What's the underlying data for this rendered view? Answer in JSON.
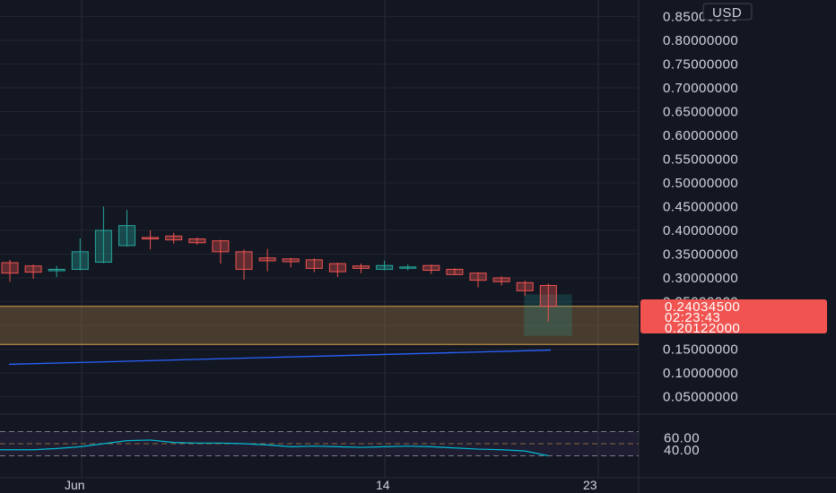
{
  "chart_data": {
    "type": "candlestick",
    "currency": "USD",
    "price_ticks": [
      "0.85000000",
      "0.80000000",
      "0.75000000",
      "0.70000000",
      "0.65000000",
      "0.60000000",
      "0.55000000",
      "0.50000000",
      "0.45000000",
      "0.40000000",
      "0.35000000",
      "0.30000000",
      "0.25000000",
      "0.15000000",
      "0.10000000",
      "0.05000000"
    ],
    "ylim": [
      0.0,
      0.85
    ],
    "x_labels": [
      "Jun",
      "14",
      "23"
    ],
    "candles": [
      {
        "o": 0.332,
        "h": 0.338,
        "l": 0.292,
        "c": 0.31
      },
      {
        "o": 0.325,
        "h": 0.328,
        "l": 0.298,
        "c": 0.312
      },
      {
        "o": 0.315,
        "h": 0.325,
        "l": 0.302,
        "c": 0.318
      },
      {
        "o": 0.318,
        "h": 0.383,
        "l": 0.316,
        "c": 0.355
      },
      {
        "o": 0.333,
        "h": 0.45,
        "l": 0.331,
        "c": 0.4
      },
      {
        "o": 0.368,
        "h": 0.443,
        "l": 0.366,
        "c": 0.41
      },
      {
        "o": 0.385,
        "h": 0.4,
        "l": 0.36,
        "c": 0.382
      },
      {
        "o": 0.388,
        "h": 0.395,
        "l": 0.372,
        "c": 0.38
      },
      {
        "o": 0.382,
        "h": 0.385,
        "l": 0.37,
        "c": 0.374
      },
      {
        "o": 0.378,
        "h": 0.38,
        "l": 0.33,
        "c": 0.355
      },
      {
        "o": 0.355,
        "h": 0.36,
        "l": 0.296,
        "c": 0.318
      },
      {
        "o": 0.342,
        "h": 0.361,
        "l": 0.314,
        "c": 0.336
      },
      {
        "o": 0.34,
        "h": 0.342,
        "l": 0.322,
        "c": 0.334
      },
      {
        "o": 0.338,
        "h": 0.341,
        "l": 0.312,
        "c": 0.32
      },
      {
        "o": 0.33,
        "h": 0.332,
        "l": 0.302,
        "c": 0.313
      },
      {
        "o": 0.325,
        "h": 0.33,
        "l": 0.31,
        "c": 0.32
      },
      {
        "o": 0.318,
        "h": 0.336,
        "l": 0.316,
        "c": 0.326
      },
      {
        "o": 0.323,
        "h": 0.328,
        "l": 0.316,
        "c": 0.323
      },
      {
        "o": 0.326,
        "h": 0.328,
        "l": 0.308,
        "c": 0.316
      },
      {
        "o": 0.318,
        "h": 0.32,
        "l": 0.306,
        "c": 0.307
      },
      {
        "o": 0.31,
        "h": 0.312,
        "l": 0.28,
        "c": 0.295
      },
      {
        "o": 0.3,
        "h": 0.303,
        "l": 0.284,
        "c": 0.292
      },
      {
        "o": 0.29,
        "h": 0.294,
        "l": 0.262,
        "c": 0.273
      },
      {
        "o": 0.284,
        "h": 0.288,
        "l": 0.208,
        "c": 0.24
      }
    ],
    "zone": {
      "top": 0.24,
      "bottom": 0.16
    },
    "ma_line": [
      0.118,
      0.148
    ],
    "last_price": "0.24034500",
    "countdown": "02:23:43",
    "second_price": "0.20122000",
    "rsi": {
      "ticks": [
        "60.00",
        "40.00"
      ],
      "upper": 70,
      "lower": 30,
      "mid": 50,
      "ylim": [
        25,
        75
      ],
      "values": [
        40,
        40,
        42,
        45,
        50,
        55,
        56,
        52,
        51,
        51,
        50,
        48,
        45,
        46,
        45,
        44,
        45,
        46,
        45,
        43,
        41,
        40,
        38,
        30
      ]
    },
    "colors": {
      "up": "#26a69a",
      "down": "#ef5350",
      "ma": "#2962ff",
      "rsi": "#00bcd4",
      "zone": "#d4a04a",
      "tag": "#f05350"
    }
  }
}
